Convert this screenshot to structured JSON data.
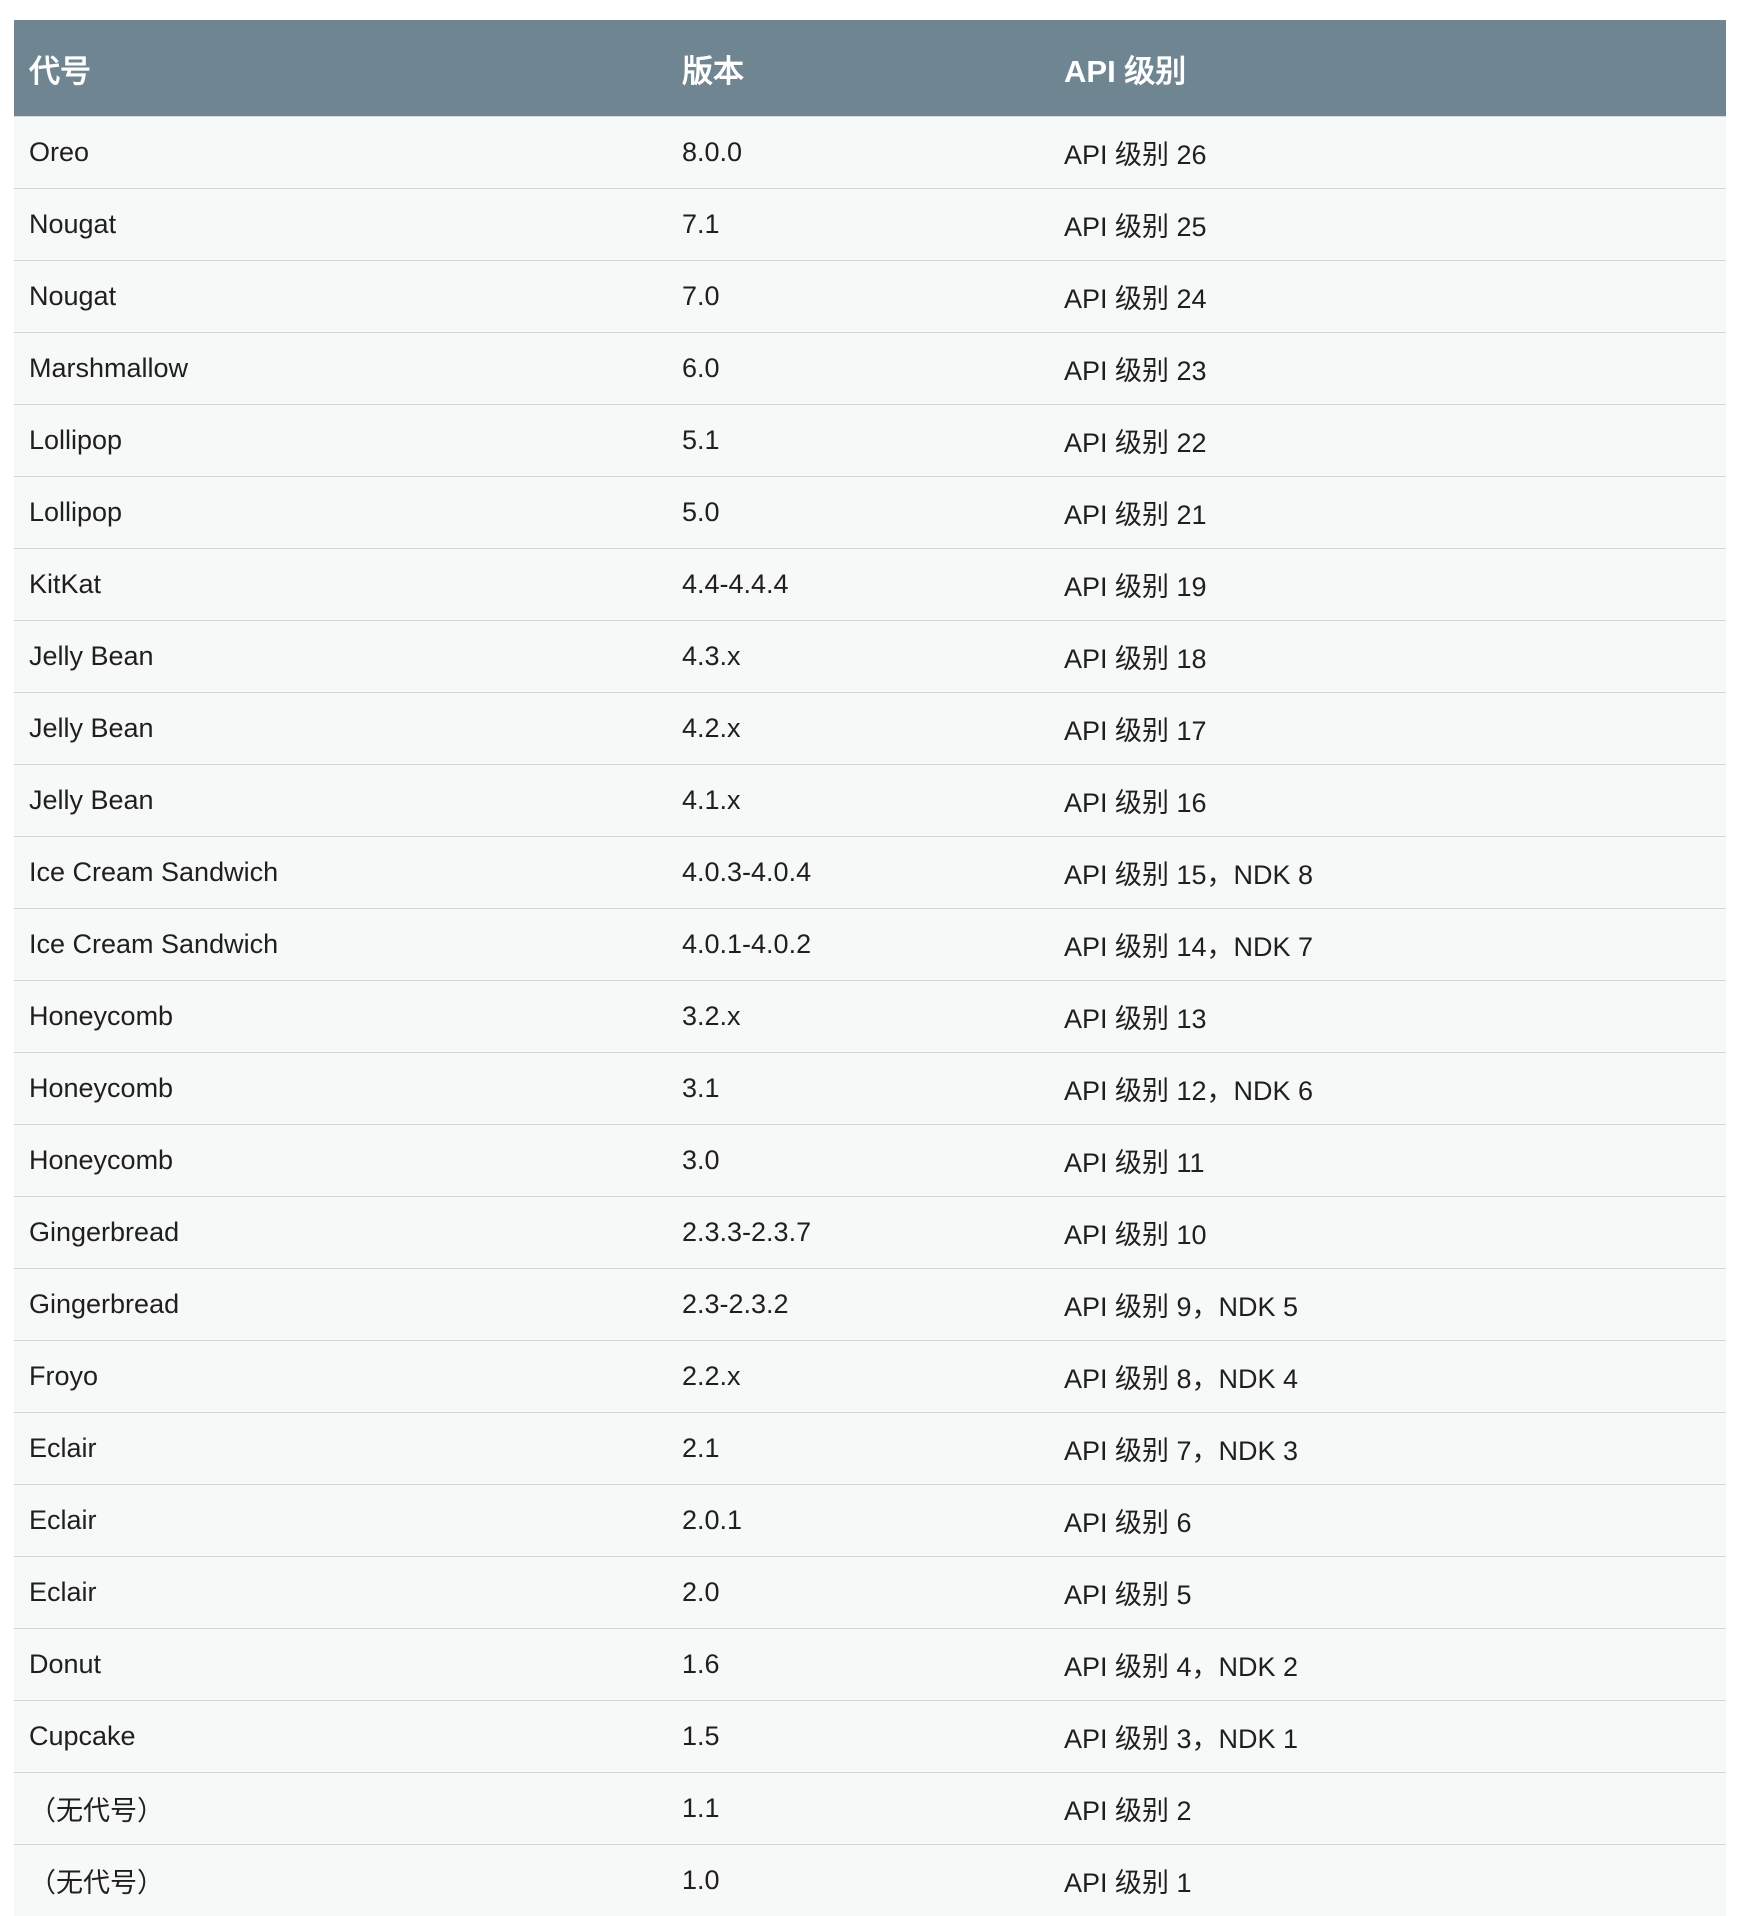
{
  "table": {
    "headers": {
      "codename": "代号",
      "version": "版本",
      "api_level": "API 级别"
    },
    "rows": [
      {
        "codename": "Oreo",
        "version": "8.0.0",
        "api": "API 级别 26"
      },
      {
        "codename": "Nougat",
        "version": "7.1",
        "api": "API 级别 25"
      },
      {
        "codename": "Nougat",
        "version": "7.0",
        "api": "API 级别 24"
      },
      {
        "codename": "Marshmallow",
        "version": "6.0",
        "api": "API 级别 23"
      },
      {
        "codename": "Lollipop",
        "version": "5.1",
        "api": "API 级别 22"
      },
      {
        "codename": "Lollipop",
        "version": "5.0",
        "api": "API 级别 21"
      },
      {
        "codename": "KitKat",
        "version": "4.4-4.4.4",
        "api": "API 级别 19"
      },
      {
        "codename": "Jelly Bean",
        "version": "4.3.x",
        "api": "API 级别 18"
      },
      {
        "codename": "Jelly Bean",
        "version": "4.2.x",
        "api": "API 级别 17"
      },
      {
        "codename": "Jelly Bean",
        "version": "4.1.x",
        "api": "API 级别 16"
      },
      {
        "codename": "Ice Cream Sandwich",
        "version": "4.0.3-4.0.4",
        "api": "API 级别 15，NDK 8"
      },
      {
        "codename": "Ice Cream Sandwich",
        "version": "4.0.1-4.0.2",
        "api": "API 级别 14，NDK 7"
      },
      {
        "codename": "Honeycomb",
        "version": "3.2.x",
        "api": "API 级别 13"
      },
      {
        "codename": "Honeycomb",
        "version": "3.1",
        "api": "API 级别 12，NDK 6"
      },
      {
        "codename": "Honeycomb",
        "version": "3.0",
        "api": "API 级别 11"
      },
      {
        "codename": "Gingerbread",
        "version": "2.3.3-2.3.7",
        "api": "API 级别 10"
      },
      {
        "codename": "Gingerbread",
        "version": "2.3-2.3.2",
        "api": "API 级别 9，NDK 5"
      },
      {
        "codename": "Froyo",
        "version": "2.2.x",
        "api": "API 级别 8，NDK 4"
      },
      {
        "codename": "Eclair",
        "version": "2.1",
        "api": "API 级别 7，NDK 3"
      },
      {
        "codename": "Eclair",
        "version": "2.0.1",
        "api": "API 级别 6"
      },
      {
        "codename": "Eclair",
        "version": "2.0",
        "api": "API 级别 5"
      },
      {
        "codename": "Donut",
        "version": "1.6",
        "api": "API 级别 4，NDK 2"
      },
      {
        "codename": "Cupcake",
        "version": "1.5",
        "api": "API 级别 3，NDK 1"
      },
      {
        "codename": "（无代号）",
        "version": "1.1",
        "api": "API 级别 2"
      },
      {
        "codename": "（无代号）",
        "version": "1.0",
        "api": "API 级别 1"
      }
    ]
  },
  "colors": {
    "header_bg": "#6f8692",
    "row_bg": "#f7f8f8",
    "divider": "#d4d7d8"
  }
}
